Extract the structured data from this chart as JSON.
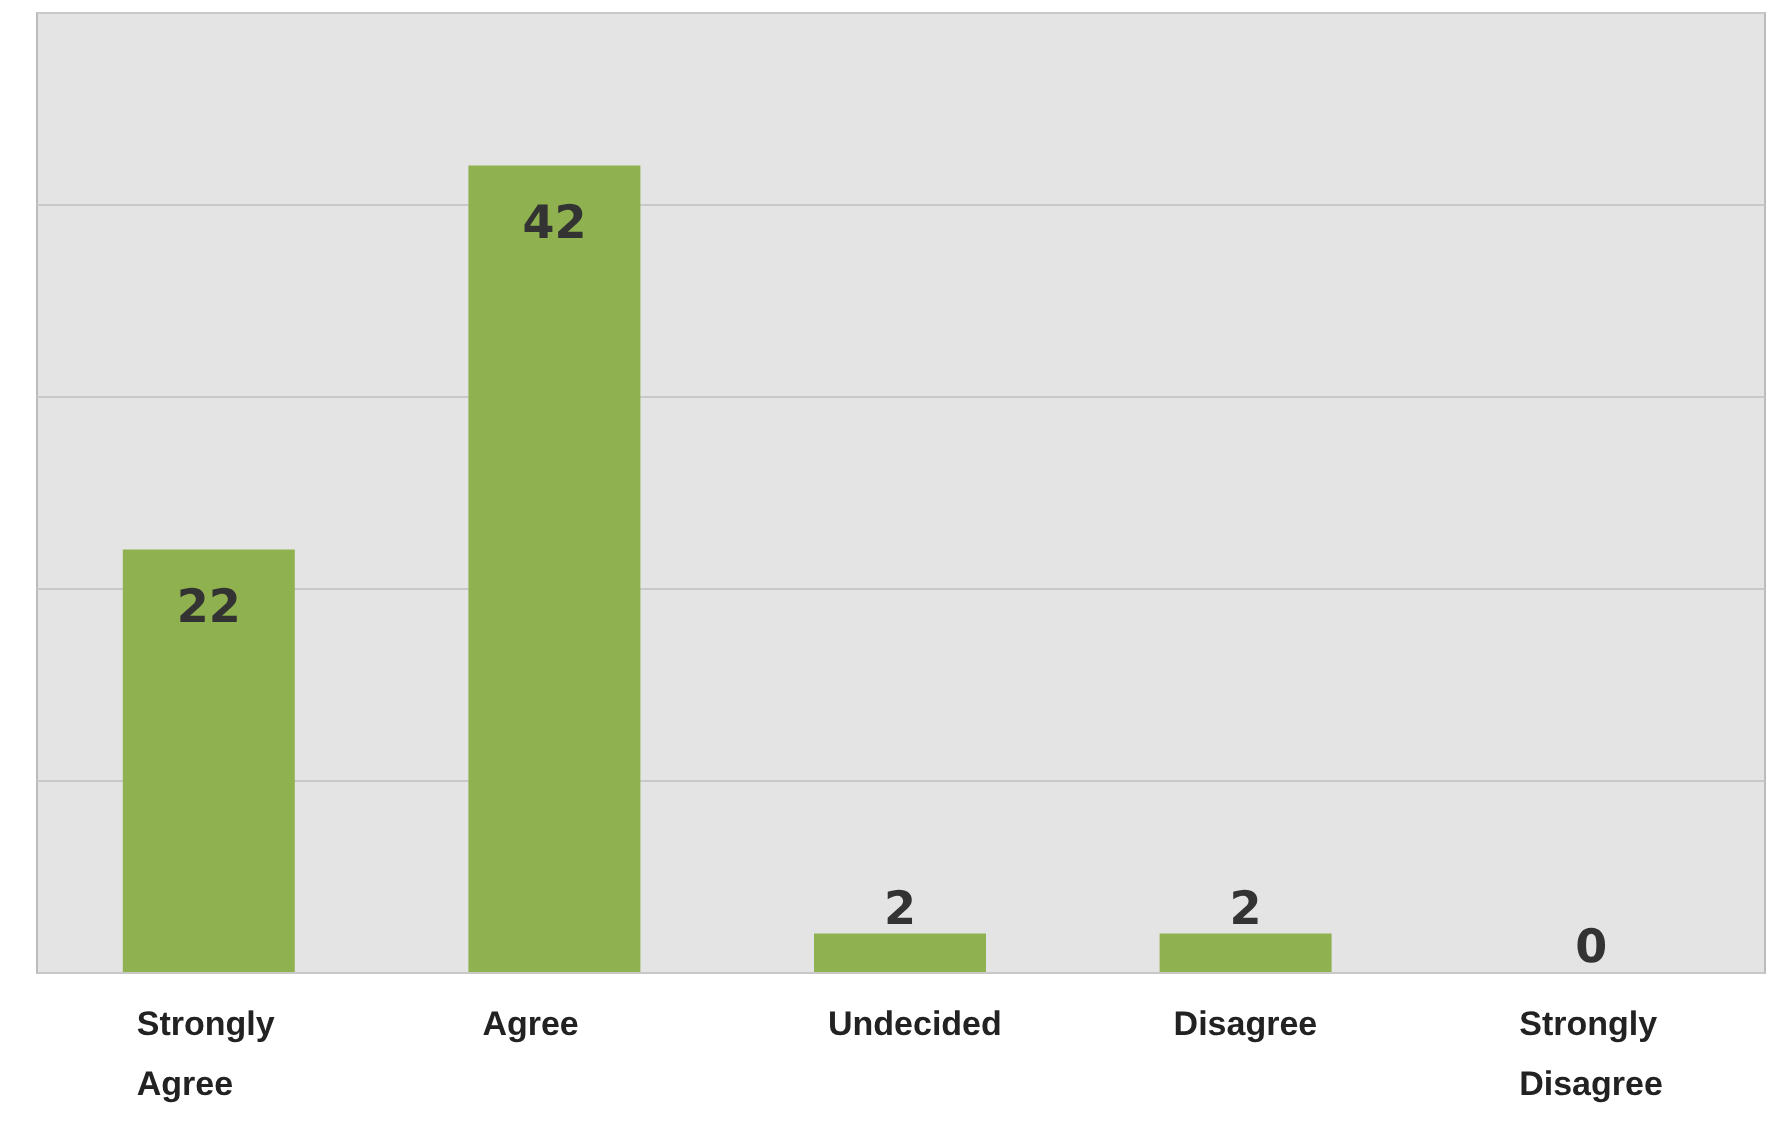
{
  "chart_data": {
    "type": "bar",
    "categories": [
      "Strongly Agree",
      "Agree",
      "Undecided",
      "Disagree",
      "Strongly Disagree"
    ],
    "values": [
      22,
      42,
      2,
      2,
      0
    ],
    "color": "#8fb14f",
    "ylim": [
      0,
      50
    ],
    "yticks": [
      0,
      10,
      20,
      30,
      40,
      50
    ],
    "grid": "y",
    "tick_labels": "x",
    "data_labels": true
  }
}
